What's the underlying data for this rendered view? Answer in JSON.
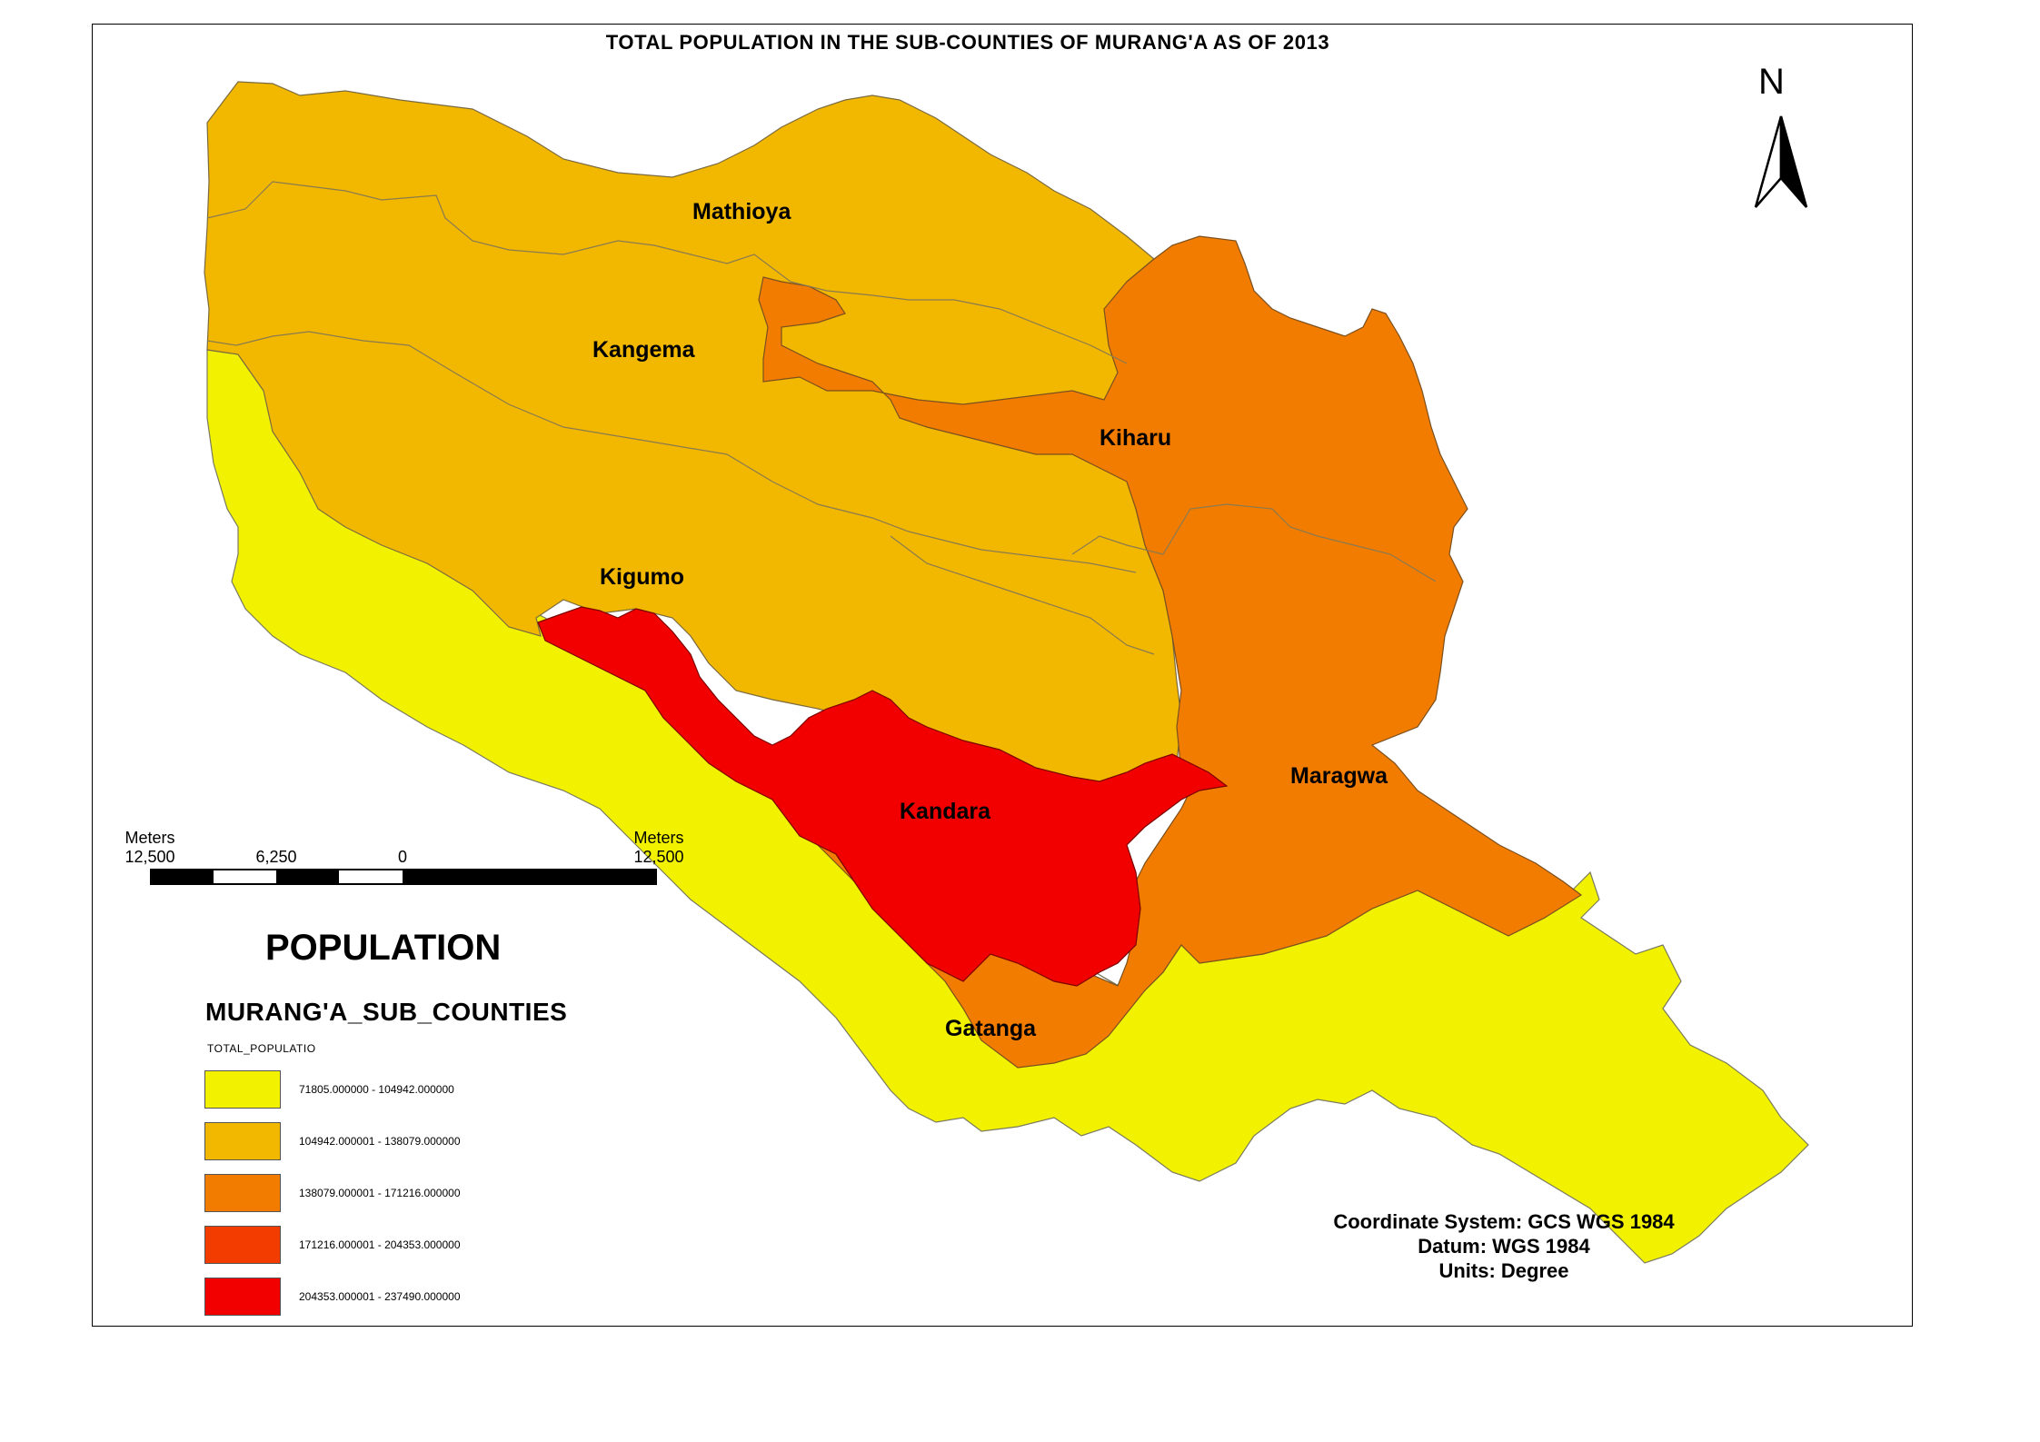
{
  "title": "TOTAL POPULATION IN THE SUB-COUNTIES OF MURANG'A AS OF 2013",
  "north_label": "N",
  "regions": [
    {
      "name": "Mathioya",
      "class": 1,
      "color": "#F2B800"
    },
    {
      "name": "Kangema",
      "class": 1,
      "color": "#F2B800"
    },
    {
      "name": "Kigumo",
      "class": 1,
      "color": "#F2B800"
    },
    {
      "name": "Kiharu",
      "class": 2,
      "color": "#F27C00"
    },
    {
      "name": "Maragwa",
      "class": 2,
      "color": "#F27C00"
    },
    {
      "name": "Kandara",
      "class": 4,
      "color": "#F20000"
    },
    {
      "name": "Gatanga",
      "class": 0,
      "color": "#F2F200"
    }
  ],
  "scale_bar": {
    "left_label": "Meters\n12,500",
    "mid_label": "6,250",
    "zero_label": "0",
    "right_label": "Meters\n12,500"
  },
  "legend": {
    "title": "POPULATION",
    "layer": "MURANG'A_SUB_COUNTIES",
    "field": "TOTAL_POPULATIO",
    "classes": [
      {
        "label": "71805.000000 - 104942.000000",
        "color": "#F2F200"
      },
      {
        "label": "104942.000001 - 138079.000000",
        "color": "#F2B800"
      },
      {
        "label": "138079.000001 - 171216.000000",
        "color": "#F27C00"
      },
      {
        "label": "171216.000001 - 204353.000000",
        "color": "#F23C00"
      },
      {
        "label": "204353.000001 - 237490.000000",
        "color": "#F20000"
      }
    ]
  },
  "coordinate_info": {
    "system": "Coordinate System: GCS WGS 1984",
    "datum": "Datum: WGS 1984",
    "units": "Units: Degree"
  }
}
